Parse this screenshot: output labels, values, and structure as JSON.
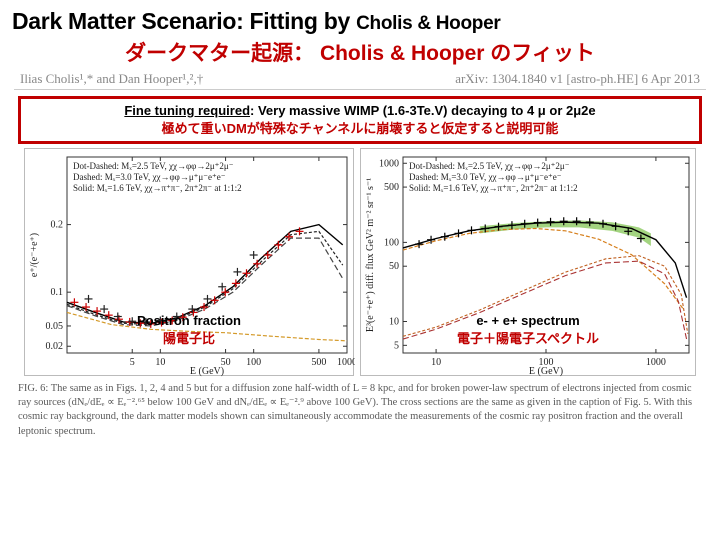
{
  "title": {
    "main_pre": "Dark Matter Scenario: Fitting by ",
    "main_small": "Cholis & Hooper",
    "sub": "ダークマター起源： Cholis & Hooper のフィット"
  },
  "authors": {
    "left": "Ilias Cholis¹,* and Dan Hooper¹,²,†",
    "right": "arXiv: 1304.1840 v1 [astro-ph.HE]  6 Apr 2013"
  },
  "callout1": {
    "en_pre": "Fine tuning required",
    "en_post": ": Very massive WIMP (1.6-3Te.V) decaying to 4 μ or 2μ2e",
    "jp": "極めて重いDMが特殊なチャンネルに崩壊すると仮定すると説明可能"
  },
  "chartLeft": {
    "type": "line",
    "label_en": "Positron fraction",
    "label_jp": "陽電子比",
    "ylabel": "e⁺/(e⁻+e⁺)",
    "xlabel": "E (GeV)",
    "xlim": [
      1,
      1000
    ],
    "xscale": "log",
    "ylim": [
      0.01,
      0.3
    ],
    "yticks": [
      0.02,
      0.05,
      0.1,
      0.2
    ],
    "xticks": [
      5,
      10,
      50,
      100,
      500,
      1000
    ],
    "grid_color": "#e0e0e0",
    "background_color": "#ffffff",
    "legend": [
      "Dot-Dashed: Mₓ=2.5 TeV, χχ→φφ→2μ⁺2μ⁻",
      "Dashed: Mₓ=3.0 TeV, χχ→φφ→μ⁺μ⁻e⁺e⁻",
      "Solid: Mₓ=1.6 TeV, χχ→π⁺π⁻, 2π⁺2π⁻ at 1:1:2"
    ],
    "series": [
      {
        "name": "fit1",
        "color": "#444444",
        "dash": "6,3",
        "width": 1.2,
        "data": [
          [
            1,
            0.08
          ],
          [
            2,
            0.065
          ],
          [
            4,
            0.052
          ],
          [
            8,
            0.05
          ],
          [
            15,
            0.058
          ],
          [
            30,
            0.075
          ],
          [
            60,
            0.1
          ],
          [
            120,
            0.14
          ],
          [
            250,
            0.18
          ],
          [
            500,
            0.18
          ],
          [
            900,
            0.12
          ]
        ]
      },
      {
        "name": "fit2",
        "color": "#222222",
        "dash": "3,2",
        "width": 1.2,
        "data": [
          [
            1,
            0.082
          ],
          [
            2,
            0.067
          ],
          [
            4,
            0.054
          ],
          [
            8,
            0.052
          ],
          [
            15,
            0.06
          ],
          [
            30,
            0.078
          ],
          [
            60,
            0.105
          ],
          [
            120,
            0.145
          ],
          [
            250,
            0.185
          ],
          [
            500,
            0.19
          ],
          [
            900,
            0.14
          ]
        ]
      },
      {
        "name": "fit3",
        "color": "#000000",
        "dash": "none",
        "width": 1.4,
        "data": [
          [
            1,
            0.085
          ],
          [
            2,
            0.07
          ],
          [
            4,
            0.056
          ],
          [
            8,
            0.054
          ],
          [
            15,
            0.062
          ],
          [
            30,
            0.08
          ],
          [
            60,
            0.108
          ],
          [
            120,
            0.15
          ],
          [
            250,
            0.19
          ],
          [
            500,
            0.2
          ],
          [
            900,
            0.17
          ]
        ]
      },
      {
        "name": "bkg",
        "color": "#d49a2a",
        "dash": "4,2",
        "width": 1.2,
        "data": [
          [
            1,
            0.07
          ],
          [
            3,
            0.052
          ],
          [
            8,
            0.045
          ],
          [
            20,
            0.042
          ],
          [
            50,
            0.04
          ],
          [
            150,
            0.035
          ],
          [
            500,
            0.03
          ],
          [
            1000,
            0.028
          ]
        ]
      }
    ],
    "data_ams": {
      "color": "#cc0000",
      "marker": "+",
      "marker_size": 4,
      "points": [
        [
          1.2,
          0.085
        ],
        [
          1.6,
          0.078
        ],
        [
          2.1,
          0.072
        ],
        [
          2.8,
          0.066
        ],
        [
          3.6,
          0.06
        ],
        [
          4.7,
          0.056
        ],
        [
          6.1,
          0.054
        ],
        [
          7.9,
          0.053
        ],
        [
          10.3,
          0.055
        ],
        [
          13.4,
          0.058
        ],
        [
          17.4,
          0.063
        ],
        [
          22.6,
          0.07
        ],
        [
          29.4,
          0.078
        ],
        [
          38.2,
          0.088
        ],
        [
          49.6,
          0.1
        ],
        [
          64.5,
          0.113
        ],
        [
          83.8,
          0.128
        ],
        [
          108.9,
          0.142
        ],
        [
          141.5,
          0.155
        ],
        [
          183.8,
          0.17
        ],
        [
          238.8,
          0.182
        ],
        [
          310,
          0.19
        ]
      ]
    },
    "data_pamela": {
      "color": "#222222",
      "marker": "+",
      "marker_size": 4,
      "points": [
        [
          1.7,
          0.09
        ],
        [
          2.5,
          0.075
        ],
        [
          3.5,
          0.064
        ],
        [
          5,
          0.057
        ],
        [
          7,
          0.056
        ],
        [
          10,
          0.058
        ],
        [
          15,
          0.064
        ],
        [
          22,
          0.075
        ],
        [
          32,
          0.09
        ],
        [
          46,
          0.108
        ],
        [
          67,
          0.13
        ],
        [
          100,
          0.155
        ]
      ]
    }
  },
  "chartRight": {
    "type": "line",
    "label_en": "e- + e+ spectrum",
    "label_jp": "電子＋陽電子スペクトル",
    "ylabel": "E³(e⁻+e⁺) diff. flux GeV² m⁻² sr⁻¹ s⁻¹",
    "xlabel": "E (GeV)",
    "xlim": [
      5,
      2000
    ],
    "xscale": "log",
    "ylim": [
      4,
      1200
    ],
    "yscale": "log",
    "yticks": [
      5,
      10,
      50,
      100,
      500,
      1000
    ],
    "xticks": [
      10,
      100,
      1000
    ],
    "grid_color": "#e0e0e0",
    "background_color": "#ffffff",
    "legend": [
      "Dot-Dashed: Mₓ=2.5 TeV, χχ→φφ→2μ⁺2μ⁻",
      "Dashed: Mₓ=3.0 TeV, χχ→φφ→μ⁺μ⁻e⁺e⁻",
      "Solid: Mₓ=1.6 TeV, χχ→π⁺π⁻, 2π⁺2π⁻ at 1:1:2"
    ],
    "fermi_band": {
      "color": "#7cc24a",
      "opacity": 0.7,
      "upper": [
        [
          25,
          160
        ],
        [
          50,
          175
        ],
        [
          100,
          185
        ],
        [
          200,
          190
        ],
        [
          400,
          180
        ],
        [
          700,
          155
        ],
        [
          900,
          130
        ]
      ],
      "lower": [
        [
          25,
          130
        ],
        [
          50,
          145
        ],
        [
          100,
          155
        ],
        [
          200,
          155
        ],
        [
          400,
          140
        ],
        [
          700,
          115
        ],
        [
          900,
          90
        ]
      ]
    },
    "series": [
      {
        "name": "astro",
        "color": "#d67f1c",
        "dash": "4,2",
        "width": 1.2,
        "data": [
          [
            5,
            80
          ],
          [
            10,
            105
          ],
          [
            20,
            130
          ],
          [
            40,
            145
          ],
          [
            80,
            150
          ],
          [
            150,
            140
          ],
          [
            300,
            110
          ],
          [
            600,
            70
          ],
          [
            1200,
            30
          ],
          [
            1800,
            14
          ]
        ]
      },
      {
        "name": "dm1",
        "color": "#aa3333",
        "dash": "6,3",
        "width": 1.1,
        "data": [
          [
            5,
            6
          ],
          [
            10,
            8
          ],
          [
            25,
            13
          ],
          [
            60,
            22
          ],
          [
            150,
            38
          ],
          [
            350,
            55
          ],
          [
            700,
            58
          ],
          [
            1200,
            40
          ],
          [
            1600,
            18
          ],
          [
            1900,
            6
          ]
        ]
      },
      {
        "name": "dm2",
        "color": "#c06020",
        "dash": "3,2",
        "width": 1.1,
        "data": [
          [
            5,
            6.5
          ],
          [
            10,
            8.5
          ],
          [
            25,
            14
          ],
          [
            60,
            24
          ],
          [
            150,
            42
          ],
          [
            350,
            62
          ],
          [
            700,
            68
          ],
          [
            1200,
            50
          ],
          [
            1700,
            22
          ],
          [
            1950,
            7
          ]
        ]
      },
      {
        "name": "total",
        "color": "#000000",
        "dash": "none",
        "width": 1.4,
        "data": [
          [
            5,
            85
          ],
          [
            10,
            112
          ],
          [
            20,
            140
          ],
          [
            40,
            160
          ],
          [
            80,
            175
          ],
          [
            150,
            180
          ],
          [
            300,
            175
          ],
          [
            600,
            150
          ],
          [
            1000,
            108
          ],
          [
            1500,
            55
          ],
          [
            1900,
            20
          ]
        ]
      }
    ],
    "data_points": {
      "color": "#000000",
      "marker": "+",
      "marker_size": 4,
      "points": [
        [
          7,
          95
        ],
        [
          9,
          108
        ],
        [
          12,
          118
        ],
        [
          16,
          130
        ],
        [
          21,
          142
        ],
        [
          28,
          150
        ],
        [
          37,
          158
        ],
        [
          49,
          165
        ],
        [
          64,
          172
        ],
        [
          84,
          178
        ],
        [
          110,
          182
        ],
        [
          145,
          185
        ],
        [
          190,
          185
        ],
        [
          250,
          180
        ],
        [
          330,
          172
        ],
        [
          430,
          160
        ],
        [
          560,
          138
        ],
        [
          730,
          112
        ]
      ]
    }
  },
  "caption": "FIG. 6: The same as in Figs. 1, 2, 4 and 5 but for a diffusion zone half-width of L = 8 kpc, and for broken power-law spectrum of electrons injected from cosmic ray sources (dNₑ/dEₑ ∝ Eₑ⁻².⁶⁵ below 100 GeV and dNₑ/dEₑ ∝ Eₑ⁻².⁹ above 100 GeV). The cross sections are the same as given in the caption of Fig. 5. With this cosmic ray background, the dark matter models shown can simultaneously accommodate the measurements of the cosmic ray positron fraction and the overall leptonic spectrum."
}
